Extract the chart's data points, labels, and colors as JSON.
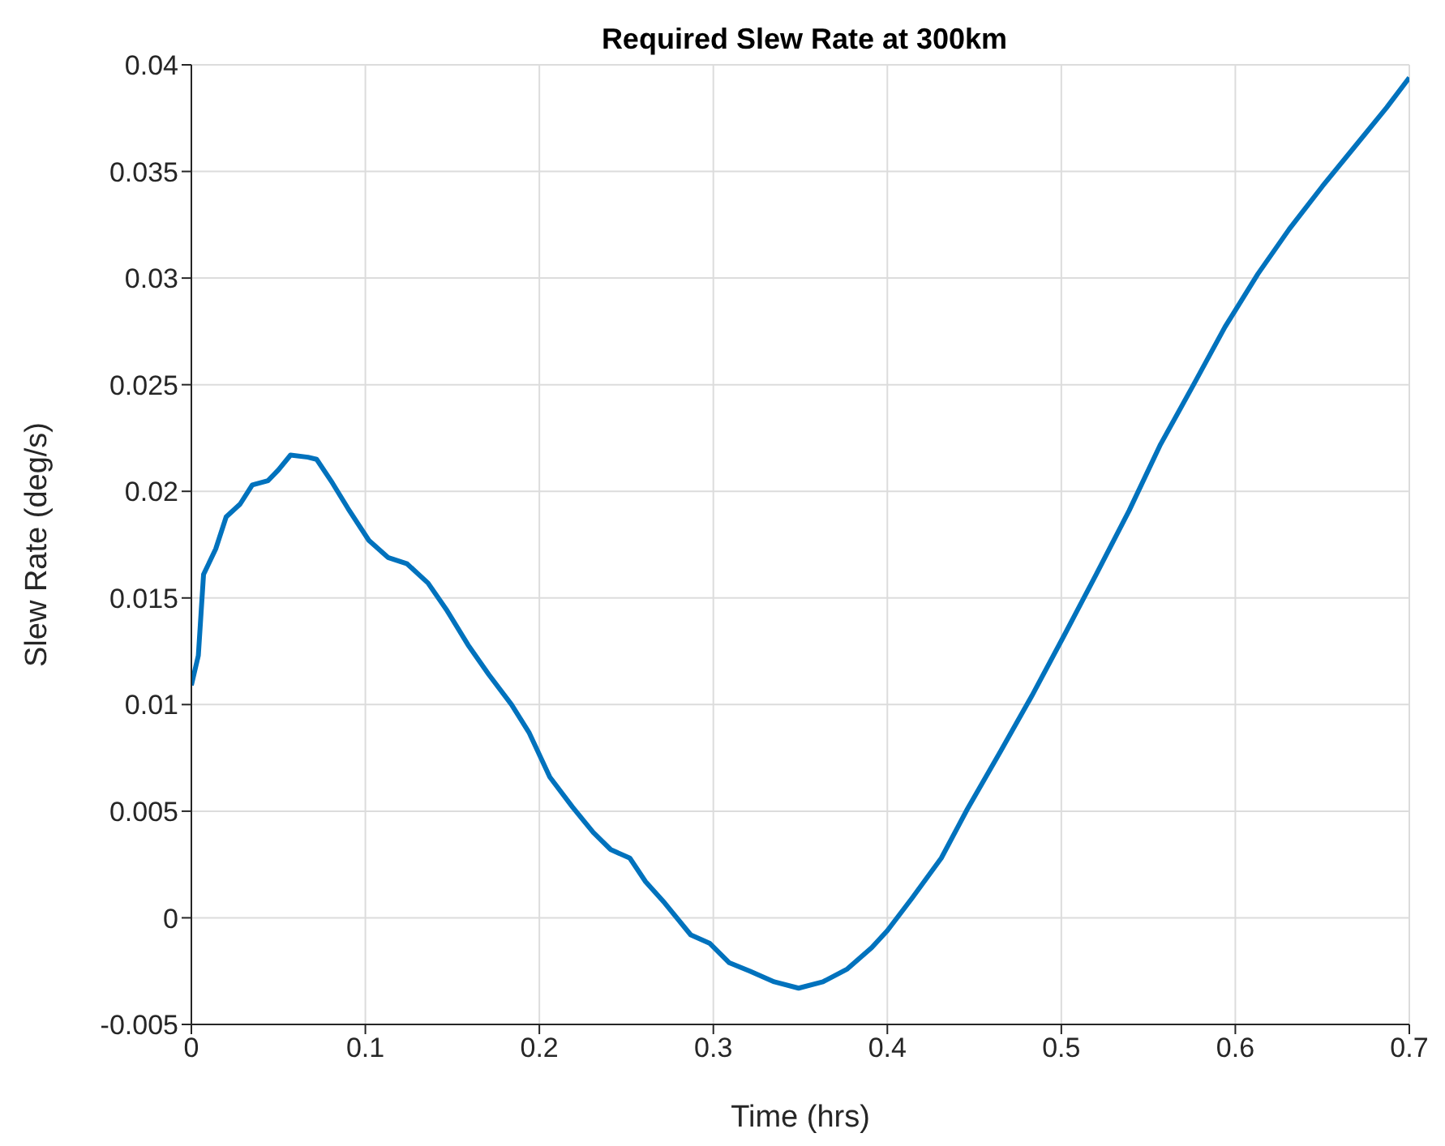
{
  "chart_data": {
    "type": "line",
    "title": "Required Slew Rate at 300km",
    "xlabel": "Time (hrs)",
    "ylabel": "Slew Rate (deg/s)",
    "x": [
      0,
      0.004,
      0.007,
      0.014,
      0.02,
      0.028,
      0.035,
      0.044,
      0.05,
      0.057,
      0.067,
      0.072,
      0.081,
      0.09,
      0.102,
      0.113,
      0.124,
      0.136,
      0.147,
      0.159,
      0.171,
      0.184,
      0.194,
      0.206,
      0.219,
      0.231,
      0.241,
      0.252,
      0.261,
      0.272,
      0.287,
      0.298,
      0.309,
      0.321,
      0.335,
      0.349,
      0.363,
      0.377,
      0.391,
      0.4,
      0.414,
      0.431,
      0.446,
      0.465,
      0.483,
      0.502,
      0.52,
      0.539,
      0.557,
      0.576,
      0.594,
      0.613,
      0.631,
      0.65,
      0.669,
      0.687,
      0.7
    ],
    "series": [
      {
        "color": "#0072bd",
        "values": [
          0.0109,
          0.0123,
          0.0161,
          0.0173,
          0.0188,
          0.0194,
          0.0203,
          0.0205,
          0.021,
          0.0217,
          0.0216,
          0.0215,
          0.0204,
          0.0192,
          0.0177,
          0.0169,
          0.0166,
          0.0157,
          0.0144,
          0.0128,
          0.0114,
          0.01,
          0.0087,
          0.0066,
          0.0052,
          0.004,
          0.0032,
          0.0028,
          0.0017,
          0.0007,
          -0.0008,
          -0.0012,
          -0.0021,
          -0.0025,
          -0.003,
          -0.0033,
          -0.003,
          -0.0024,
          -0.0014,
          -0.0006,
          0.0009,
          0.0028,
          0.0051,
          0.0078,
          0.0104,
          0.0133,
          0.0161,
          0.0191,
          0.0222,
          0.025,
          0.0277,
          0.0302,
          0.0323,
          0.0343,
          0.0362,
          0.038,
          0.0394
        ]
      }
    ],
    "xlim": [
      0,
      0.7
    ],
    "xticks": [
      0,
      0.1,
      0.2,
      0.3,
      0.4,
      0.5,
      0.6,
      0.7
    ],
    "ylim": [
      -0.005,
      0.04
    ],
    "yticks": [
      -0.005,
      0,
      0.005,
      0.01,
      0.015,
      0.02,
      0.025,
      0.03,
      0.035,
      0.04
    ],
    "grid": true,
    "legend": false,
    "marker": "none",
    "line_style": "solid"
  }
}
